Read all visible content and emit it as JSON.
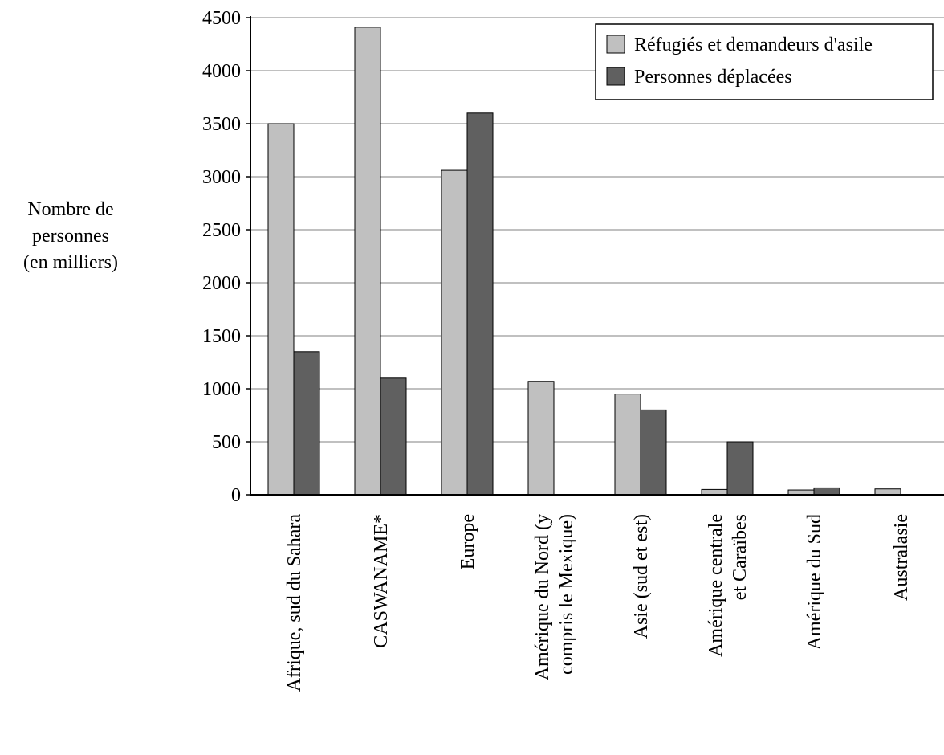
{
  "chart_data": {
    "type": "bar",
    "title": "",
    "ylabel_lines": [
      "Nombre de",
      "personnes",
      "(en milliers)"
    ],
    "ylim": [
      0,
      4500
    ],
    "yticks": [
      0,
      500,
      1000,
      1500,
      2000,
      2500,
      3000,
      3500,
      4000,
      4500
    ],
    "grid": true,
    "legend_position": "top-right",
    "categories": [
      [
        "Afrique, sud du Sahara"
      ],
      [
        "CASWANAME*"
      ],
      [
        "Europe"
      ],
      [
        "Amérique du Nord (y",
        "compris le Mexique)"
      ],
      [
        "Asie (sud et est)"
      ],
      [
        "Amérique centrale",
        "et Caraïbes"
      ],
      [
        "Amérique du Sud"
      ],
      [
        "Australasie"
      ]
    ],
    "series": [
      {
        "name": "Réfugiés et demandeurs d'asile",
        "color": "#c0c0c0",
        "values": [
          3500,
          4410,
          3060,
          1070,
          950,
          50,
          45,
          55
        ]
      },
      {
        "name": "Personnes déplacées",
        "color": "#606060",
        "values": [
          1350,
          1100,
          3600,
          0,
          800,
          500,
          65,
          0
        ]
      }
    ]
  }
}
